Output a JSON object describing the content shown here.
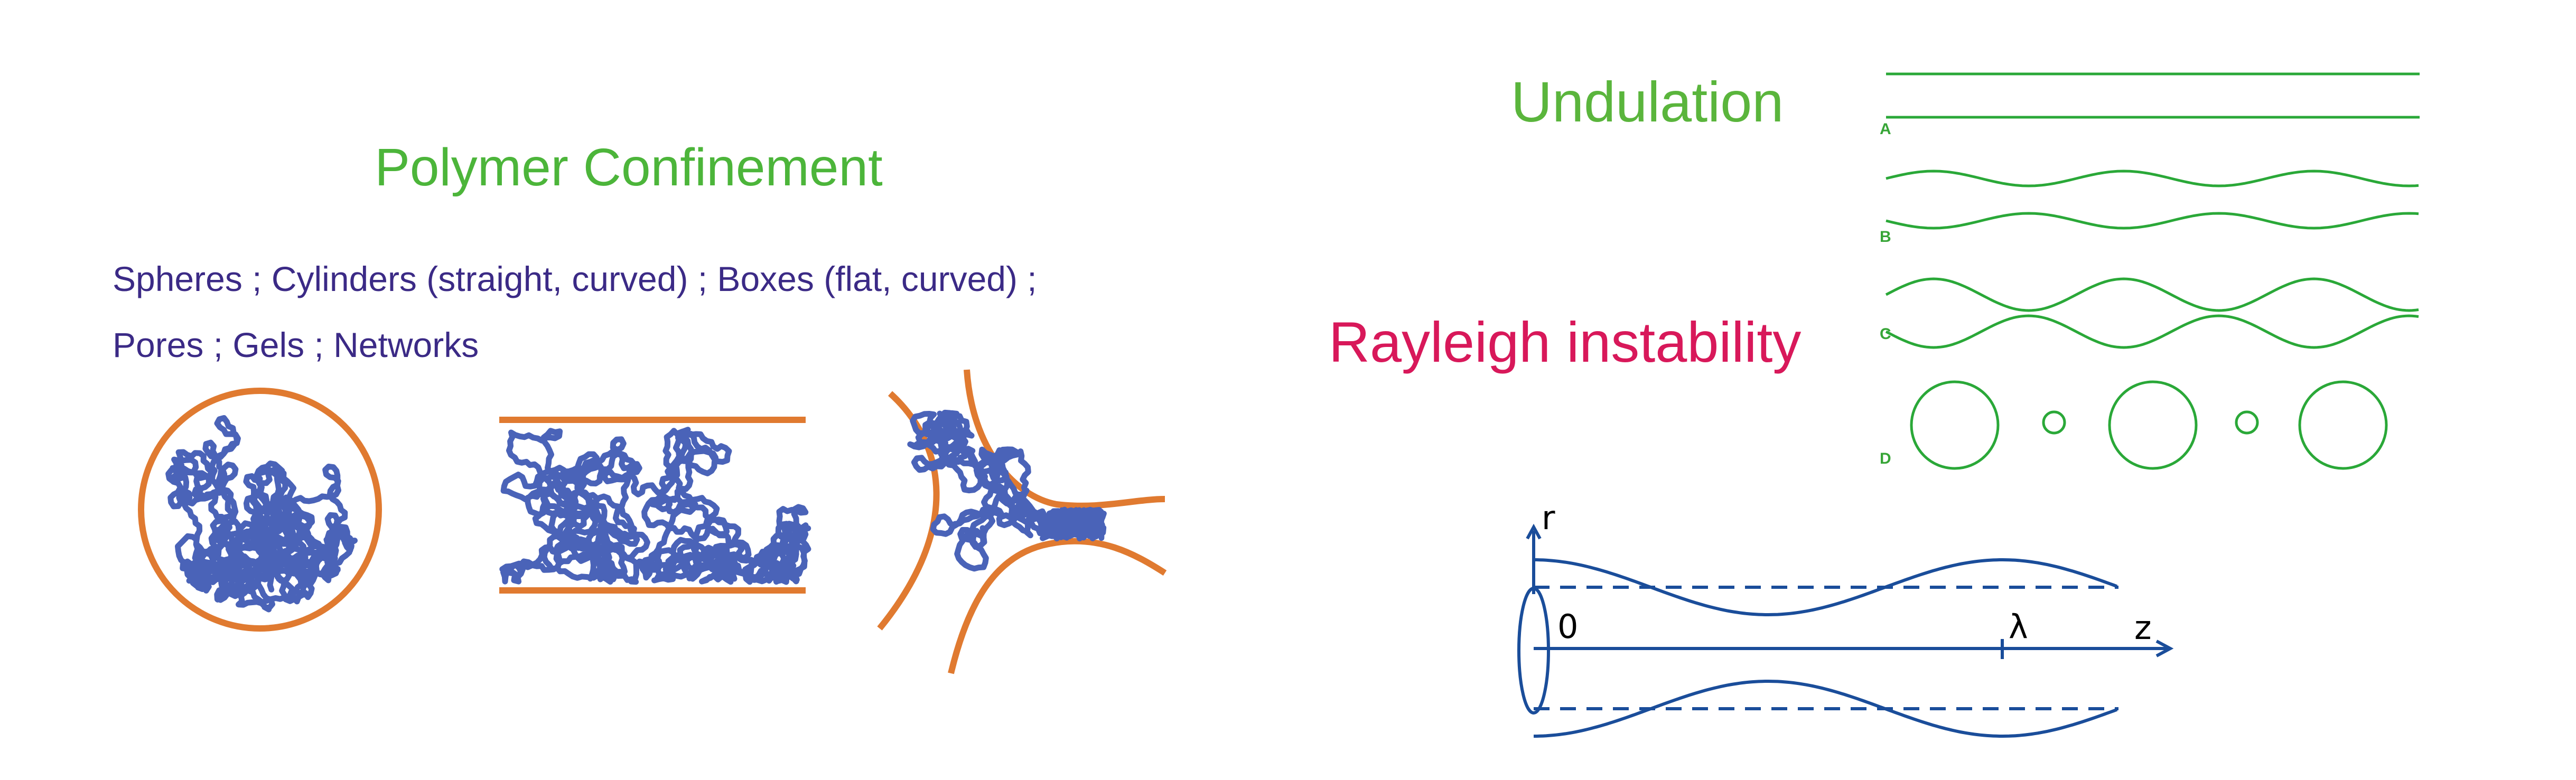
{
  "polymer": {
    "title": "Polymer Confinement",
    "line1": "Spheres ; Cylinders (straight, curved) ; Boxes (flat, curved) ;",
    "line2": "Pores ; Gels ; Networks"
  },
  "undulation": {
    "title": "Undulation",
    "panels": [
      "A",
      "B",
      "C",
      "D"
    ]
  },
  "rayleigh": {
    "title": "Rayleigh instability",
    "axis_r": "r",
    "origin": "0",
    "wavelength": "λ",
    "axis_z": "z"
  },
  "colors": {
    "green_title": "#4cb53a",
    "purple_text": "#3b2a86",
    "red_title": "#d8185a",
    "orange_wall": "#e07a30",
    "polymer_blue": "#4a63b8",
    "line_green": "#2aa838",
    "figure_blue": "#1a4d9a"
  }
}
